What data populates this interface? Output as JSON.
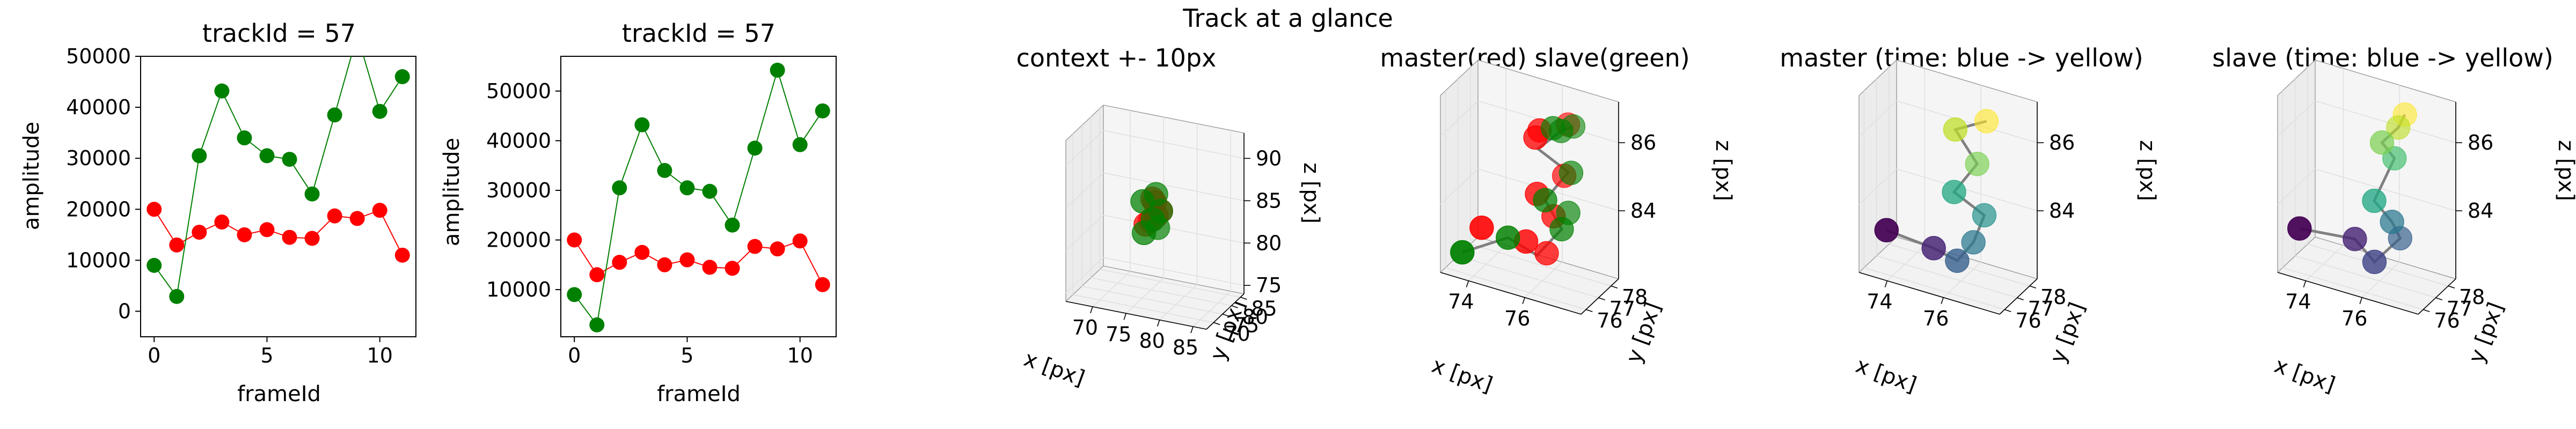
{
  "suptitle": "Track at a glance",
  "colors": {
    "red": "#ff0000",
    "green": "#008000",
    "track_line": "#808080"
  },
  "chart_data": [
    {
      "type": "line",
      "title": "trackId = 57",
      "xlabel": "frameId",
      "ylabel": "amplitude",
      "xlim": [
        -0.6,
        11.6
      ],
      "ylim": [
        -5000,
        50000
      ],
      "xticks": [
        0,
        5,
        10
      ],
      "yticks": [
        0,
        10000,
        20000,
        30000,
        40000,
        50000
      ],
      "grid": false,
      "series": [
        {
          "color": "#ff0000",
          "x": [
            0,
            1,
            2,
            3,
            4,
            5,
            6,
            7,
            8,
            9,
            10,
            11
          ],
          "values": [
            20000,
            13000,
            15500,
            17500,
            15000,
            16000,
            14500,
            14300,
            18700,
            18200,
            19800,
            11000
          ]
        },
        {
          "color": "#008000",
          "x": [
            0,
            1,
            2,
            3,
            4,
            5,
            6,
            7,
            8,
            9,
            10,
            11
          ],
          "values": [
            9000,
            2900,
            30500,
            43200,
            34000,
            30500,
            29800,
            23000,
            38500,
            54200,
            39200,
            46000
          ]
        }
      ]
    },
    {
      "type": "line",
      "title": "trackId = 57",
      "xlabel": "frameId",
      "ylabel": "amplitude",
      "xlim": [
        -0.6,
        11.6
      ],
      "ylim": [
        500,
        57000
      ],
      "xticks": [
        0,
        5,
        10
      ],
      "yticks": [
        10000,
        20000,
        30000,
        40000,
        50000
      ],
      "grid": false,
      "series": [
        {
          "color": "#ff0000",
          "x": [
            0,
            1,
            2,
            3,
            4,
            5,
            6,
            7,
            8,
            9,
            10,
            11
          ],
          "values": [
            20000,
            13000,
            15500,
            17500,
            15000,
            16000,
            14500,
            14300,
            18700,
            18200,
            19800,
            11000
          ]
        },
        {
          "color": "#008000",
          "x": [
            0,
            1,
            2,
            3,
            4,
            5,
            6,
            7,
            8,
            9,
            10,
            11
          ],
          "values": [
            9000,
            2900,
            30500,
            43200,
            34000,
            30500,
            29800,
            23000,
            38500,
            54200,
            39200,
            46000
          ]
        }
      ]
    },
    {
      "type": "scatter3d",
      "title": "context +- 10px",
      "xlabel": "x [px]",
      "ylabel": "y [px]",
      "zlabel": "z [px]",
      "xlim": [
        66,
        87
      ],
      "ylim": [
        66,
        87
      ],
      "zlim": [
        74,
        93
      ],
      "xticks": [
        70,
        75,
        80,
        85
      ],
      "yticks": [
        70,
        75,
        80,
        85
      ],
      "zticks": [
        75,
        80,
        85,
        90
      ],
      "grid": true,
      "series": [
        {
          "color": "#ff0000",
          "x": [
            76.5,
            77.0,
            75.8,
            76.2,
            75.2,
            76.0
          ],
          "y": [
            77.3,
            78.0,
            76.5,
            77.5,
            76.2,
            77.0
          ],
          "z": [
            83.5,
            84.0,
            83.0,
            85.0,
            82.5,
            85.5
          ]
        },
        {
          "color": "#008000",
          "x": [
            75.0,
            76.0,
            77.0,
            76.6,
            74.8,
            76.4
          ],
          "y": [
            76.0,
            77.2,
            78.0,
            77.8,
            76.0,
            77.5
          ],
          "z": [
            81.5,
            83.0,
            84.0,
            82.0,
            85.2,
            86.0
          ]
        }
      ]
    },
    {
      "type": "scatter3d",
      "title": "master(red) slave(green)",
      "xlabel": "x [px]",
      "ylabel": "y [px]",
      "zlabel": "z [px]",
      "xlim": [
        73.0,
        78.0
      ],
      "ylim": [
        75.6,
        78.6
      ],
      "zlim": [
        82.0,
        87.2
      ],
      "xticks": [
        74,
        76
      ],
      "yticks": [
        76,
        77,
        78
      ],
      "zticks": [
        84,
        86
      ],
      "grid": true,
      "track": [
        [
          73.6,
          76.0,
          82.6
        ],
        [
          75.0,
          76.5,
          83.2
        ],
        [
          75.9,
          76.8,
          82.8
        ],
        [
          76.6,
          77.2,
          83.6
        ],
        [
          76.1,
          77.0,
          84.4
        ],
        [
          76.7,
          77.5,
          85.2
        ],
        [
          75.8,
          77.1,
          85.8
        ],
        [
          76.4,
          77.6,
          86.3
        ],
        [
          76.7,
          77.9,
          86.4
        ]
      ],
      "series": [
        {
          "color": "#ff0000",
          "x": [
            74.2,
            75.6,
            76.2,
            76.4,
            75.9,
            76.6,
            75.8,
            75.9,
            76.6
          ],
          "y": [
            76.2,
            76.6,
            76.9,
            77.0,
            76.8,
            77.4,
            76.9,
            77.0,
            77.7
          ],
          "z": [
            83.4,
            83.2,
            82.9,
            84.0,
            84.6,
            85.1,
            86.2,
            86.4,
            86.5
          ]
        },
        {
          "color": "#008000",
          "x": [
            73.6,
            75.0,
            76.6,
            76.7,
            76.1,
            76.8,
            76.4,
            76.2,
            76.7
          ],
          "y": [
            76.0,
            76.5,
            77.2,
            77.5,
            77.0,
            77.5,
            77.6,
            77.4,
            77.9
          ],
          "z": [
            82.6,
            83.2,
            83.6,
            84.0,
            84.4,
            85.2,
            86.3,
            86.4,
            86.4
          ]
        }
      ]
    },
    {
      "type": "scatter3d",
      "title": "master (time: blue -> yellow)",
      "xlabel": "x [px]",
      "ylabel": "y [px]",
      "zlabel": "z [px]",
      "xlim": [
        73.0,
        78.0
      ],
      "ylim": [
        75.6,
        78.6
      ],
      "zlim": [
        82.0,
        87.2
      ],
      "xticks": [
        74,
        76
      ],
      "yticks": [
        76,
        77,
        78
      ],
      "zticks": [
        84,
        86
      ],
      "grid": true,
      "colormap": [
        "#440154",
        "#482475",
        "#414487",
        "#355f8d",
        "#2a788e",
        "#21918c",
        "#22a884",
        "#44bf70",
        "#7ad151",
        "#bddf26",
        "#fde725"
      ],
      "track": [
        [
          73.8,
          76.0,
          83.3
        ],
        [
          75.3,
          76.4,
          83.0
        ],
        [
          76.0,
          76.7,
          82.7
        ],
        [
          76.4,
          77.1,
          83.2
        ],
        [
          76.7,
          77.3,
          84.0
        ],
        [
          75.8,
          76.9,
          84.6
        ],
        [
          76.4,
          77.4,
          85.4
        ],
        [
          75.8,
          77.0,
          86.4
        ],
        [
          76.6,
          77.7,
          86.6
        ]
      ],
      "series": [
        {
          "name": "master",
          "x": [
            73.8,
            75.3,
            76.0,
            76.4,
            76.7,
            75.8,
            76.4,
            75.8,
            76.6
          ],
          "y": [
            76.0,
            76.4,
            76.7,
            77.1,
            77.3,
            76.9,
            77.4,
            77.0,
            77.7
          ],
          "z": [
            83.3,
            83.0,
            82.7,
            83.2,
            84.0,
            84.6,
            85.4,
            86.4,
            86.6
          ]
        }
      ]
    },
    {
      "type": "scatter3d",
      "title": "slave (time: blue -> yellow)",
      "xlabel": "x [px]",
      "ylabel": "y [px]",
      "zlabel": "z [px]",
      "xlim": [
        73.0,
        78.0
      ],
      "ylim": [
        75.6,
        78.6
      ],
      "zlim": [
        82.0,
        87.2
      ],
      "xticks": [
        74,
        76
      ],
      "yticks": [
        76,
        77,
        78
      ],
      "zticks": [
        84,
        86
      ],
      "grid": true,
      "colormap": [
        "#440154",
        "#482475",
        "#414487",
        "#355f8d",
        "#2a788e",
        "#21918c",
        "#22a884",
        "#44bf70",
        "#7ad151",
        "#bddf26",
        "#fde725"
      ],
      "track": [
        [
          73.6,
          76.0,
          83.3
        ],
        [
          75.3,
          76.6,
          83.2
        ],
        [
          76.0,
          76.6,
          82.7
        ],
        [
          76.6,
          77.3,
          83.3
        ],
        [
          76.4,
          77.1,
          83.8
        ],
        [
          75.9,
          76.8,
          84.4
        ],
        [
          76.4,
          77.3,
          85.6
        ],
        [
          76.0,
          77.2,
          86.0
        ],
        [
          76.4,
          77.6,
          86.4
        ],
        [
          76.5,
          77.9,
          86.7
        ]
      ],
      "series": [
        {
          "name": "slave",
          "x": [
            73.6,
            75.3,
            76.0,
            76.6,
            76.4,
            75.9,
            76.4,
            76.0,
            76.4,
            76.5
          ],
          "y": [
            76.0,
            76.6,
            76.6,
            77.3,
            77.1,
            76.8,
            77.3,
            77.2,
            77.6,
            77.9
          ],
          "z": [
            83.3,
            83.2,
            82.7,
            83.3,
            83.8,
            84.4,
            85.6,
            86.0,
            86.4,
            86.7
          ]
        }
      ]
    }
  ]
}
